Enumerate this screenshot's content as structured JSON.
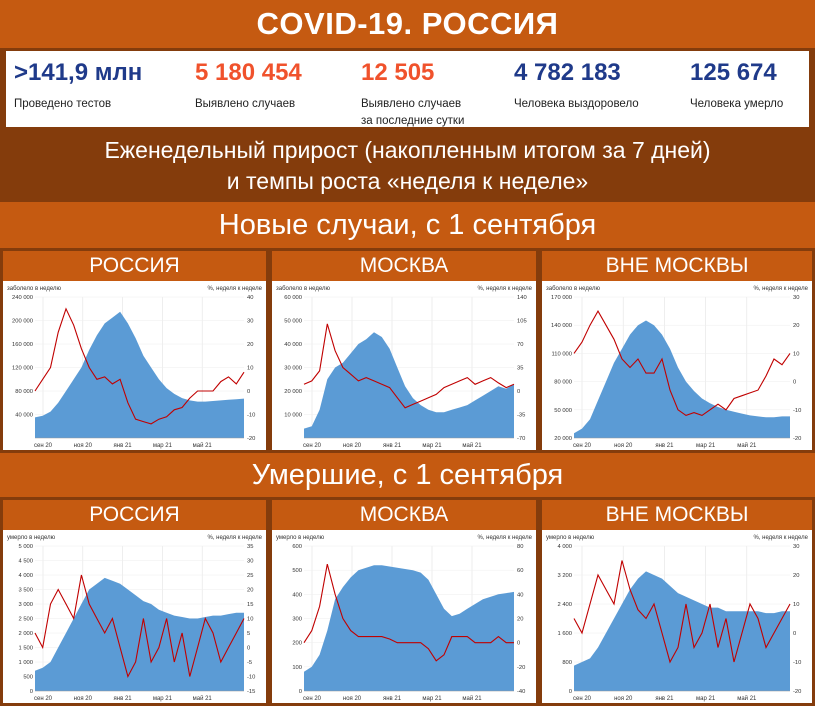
{
  "header": {
    "title": "COVID-19. РОССИЯ"
  },
  "stats": [
    {
      "value": ">141,9 млн",
      "label": "Проведено тестов",
      "color": "#1f3a8a"
    },
    {
      "value": "5 180 454",
      "label": "Выявлено случаев",
      "color": "#f0522c"
    },
    {
      "value": "12 505",
      "label": "Выявлено случаев",
      "label2": "за последние сутки",
      "color": "#f0522c"
    },
    {
      "value": "4 782 183",
      "label": "Человека выздоровело",
      "color": "#1f3a8a"
    },
    {
      "value": "125 674",
      "label": "Человека умерло",
      "color": "#1f3a8a"
    }
  ],
  "subtitle": {
    "line1": "Еженедельный прирост (накопленным итогом за 7 дней)",
    "line2": "и темпы роста «неделя к неделе»"
  },
  "section_cases": "Новые случаи, с 1 сентября",
  "section_deaths": "Умершие, с 1 сентября",
  "panel_titles": {
    "russia": "РОССИЯ",
    "moscow": "МОСКВА",
    "outside": "ВНЕ МОСКВЫ"
  },
  "colors": {
    "area": "#5b9bd5",
    "line": "#c00000",
    "orange": "#c55a11",
    "brown": "#843c0c"
  },
  "chart_data": [
    {
      "id": "cases-russia",
      "type": "area+line",
      "left_axis_label": "заболело в неделю",
      "right_axis_label": "%, неделя к неделе",
      "yticks": [
        "240 000",
        "200 000",
        "160 000",
        "120 000",
        "80 000",
        "40 000"
      ],
      "ylim": [
        0,
        240000
      ],
      "y2ticks": [
        "40",
        "30",
        "20",
        "10",
        "0",
        "-10",
        "-20"
      ],
      "y2lim": [
        -20,
        40
      ],
      "xticks": [
        "сен 20",
        "ноя 20",
        "янв 21",
        "мар 21",
        "май 21"
      ],
      "area_values": [
        35000,
        38000,
        45000,
        60000,
        80000,
        100000,
        120000,
        150000,
        175000,
        195000,
        205000,
        215000,
        195000,
        170000,
        140000,
        120000,
        100000,
        85000,
        75000,
        68000,
        64000,
        62000,
        62000,
        63000,
        64000,
        65000,
        66000,
        67000
      ],
      "line_values": [
        0,
        5,
        10,
        25,
        35,
        28,
        18,
        10,
        5,
        6,
        3,
        5,
        -5,
        -12,
        -13,
        -14,
        -12,
        -11,
        -8,
        -7,
        -3,
        0,
        0,
        0,
        4,
        6,
        3,
        8
      ]
    },
    {
      "id": "cases-moscow",
      "type": "area+line",
      "left_axis_label": "заболело в неделю",
      "right_axis_label": "%, неделя к неделе",
      "yticks": [
        "60 000",
        "50 000",
        "40 000",
        "30 000",
        "20 000",
        "10 000"
      ],
      "ylim": [
        0,
        60000
      ],
      "y2ticks": [
        "140",
        "105",
        "70",
        "35",
        "0",
        "-35",
        "-70"
      ],
      "y2lim": [
        -70,
        140
      ],
      "xticks": [
        "сен 20",
        "ноя 20",
        "янв 21",
        "мар 21",
        "май 21"
      ],
      "area_values": [
        4000,
        5000,
        12000,
        25000,
        30000,
        32000,
        36000,
        40000,
        42000,
        45000,
        43000,
        38000,
        30000,
        22000,
        17000,
        14000,
        12000,
        11000,
        11000,
        12000,
        13000,
        14000,
        16000,
        18000,
        20000,
        22000,
        21000,
        23000
      ],
      "line_values": [
        10,
        15,
        30,
        100,
        60,
        35,
        25,
        15,
        20,
        15,
        10,
        5,
        -10,
        -25,
        -20,
        -15,
        -10,
        -5,
        5,
        10,
        15,
        20,
        10,
        15,
        20,
        12,
        5,
        10
      ]
    },
    {
      "id": "cases-outside",
      "type": "area+line",
      "left_axis_label": "заболело в неделю",
      "right_axis_label": "%, неделя к неделе",
      "yticks": [
        "170 000",
        "140 000",
        "110 000",
        "80 000",
        "50 000",
        "20 000"
      ],
      "ylim": [
        20000,
        170000
      ],
      "y2ticks": [
        "30",
        "20",
        "10",
        "0",
        "-10",
        "-20"
      ],
      "y2lim": [
        -20,
        30
      ],
      "xticks": [
        "сен 20",
        "ноя 20",
        "янв 21",
        "мар 21",
        "май 21"
      ],
      "area_values": [
        25000,
        30000,
        40000,
        60000,
        80000,
        100000,
        115000,
        130000,
        140000,
        145000,
        140000,
        130000,
        115000,
        95000,
        80000,
        70000,
        62000,
        57000,
        53000,
        50000,
        48000,
        46000,
        44000,
        43000,
        42000,
        42000,
        43000,
        43000
      ],
      "line_values": [
        10,
        14,
        20,
        25,
        20,
        15,
        8,
        5,
        8,
        3,
        3,
        8,
        -3,
        -10,
        -12,
        -11,
        -12,
        -10,
        -8,
        -10,
        -6,
        -5,
        -4,
        -3,
        2,
        8,
        6,
        10
      ]
    },
    {
      "id": "deaths-russia",
      "type": "area+line",
      "left_axis_label": "умерло в неделю",
      "right_axis_label": "%, неделя к неделе",
      "yticks": [
        "5 000",
        "4 500",
        "4 000",
        "3 500",
        "3 000",
        "2 500",
        "2 000",
        "1 500",
        "1 000",
        "500",
        "0"
      ],
      "ylim": [
        0,
        5000
      ],
      "y2ticks": [
        "35",
        "30",
        "25",
        "20",
        "15",
        "10",
        "5",
        "0",
        "-5",
        "-10",
        "-15"
      ],
      "y2lim": [
        -15,
        35
      ],
      "xticks": [
        "сен 20",
        "ноя 20",
        "янв 21",
        "мар 21",
        "май 21"
      ],
      "area_values": [
        700,
        800,
        1000,
        1500,
        2000,
        2500,
        3000,
        3500,
        3700,
        3900,
        3800,
        3700,
        3500,
        3300,
        3100,
        3000,
        2800,
        2700,
        2600,
        2550,
        2500,
        2500,
        2550,
        2600,
        2600,
        2650,
        2700,
        2700
      ],
      "line_values": [
        5,
        0,
        15,
        20,
        15,
        10,
        25,
        15,
        10,
        5,
        10,
        0,
        -10,
        -5,
        10,
        -5,
        0,
        10,
        -5,
        5,
        -10,
        0,
        10,
        5,
        -5,
        0,
        5,
        10
      ]
    },
    {
      "id": "deaths-moscow",
      "type": "area+line",
      "left_axis_label": "умерло в неделю",
      "right_axis_label": "%, неделя к неделе",
      "yticks": [
        "600",
        "500",
        "400",
        "300",
        "200",
        "100",
        "0"
      ],
      "ylim": [
        0,
        600
      ],
      "y2ticks": [
        "80",
        "60",
        "40",
        "20",
        "0",
        "-20",
        "-40"
      ],
      "y2lim": [
        -40,
        80
      ],
      "xticks": [
        "сен 20",
        "ноя 20",
        "янв 21",
        "мар 21",
        "май 21"
      ],
      "area_values": [
        80,
        100,
        150,
        250,
        380,
        430,
        470,
        500,
        510,
        520,
        520,
        515,
        510,
        505,
        500,
        490,
        460,
        400,
        340,
        310,
        320,
        340,
        360,
        380,
        390,
        400,
        405,
        410
      ],
      "line_values": [
        0,
        10,
        30,
        65,
        40,
        20,
        10,
        5,
        5,
        5,
        5,
        3,
        0,
        0,
        0,
        0,
        -5,
        -15,
        -10,
        5,
        5,
        5,
        0,
        0,
        0,
        5,
        0,
        0
      ]
    },
    {
      "id": "deaths-outside",
      "type": "area+line",
      "left_axis_label": "умерло в неделю",
      "right_axis_label": "%, неделя к неделе",
      "yticks": [
        "4 000",
        "3 200",
        "2 400",
        "1 600",
        "800",
        "0"
      ],
      "ylim": [
        0,
        4000
      ],
      "y2ticks": [
        "30",
        "20",
        "10",
        "0",
        "-10",
        "-20"
      ],
      "y2lim": [
        -20,
        30
      ],
      "xticks": [
        "сен 20",
        "ноя 20",
        "янв 21",
        "мар 21",
        "май 21"
      ],
      "area_values": [
        700,
        800,
        900,
        1200,
        1600,
        2000,
        2400,
        2800,
        3100,
        3300,
        3200,
        3100,
        2900,
        2700,
        2600,
        2500,
        2400,
        2300,
        2300,
        2200,
        2200,
        2200,
        2200,
        2200,
        2150,
        2150,
        2200,
        2200
      ],
      "line_values": [
        5,
        0,
        10,
        20,
        15,
        10,
        25,
        15,
        8,
        5,
        10,
        0,
        -10,
        -5,
        10,
        -5,
        0,
        10,
        -5,
        5,
        -10,
        0,
        10,
        5,
        -5,
        0,
        5,
        10
      ]
    }
  ]
}
